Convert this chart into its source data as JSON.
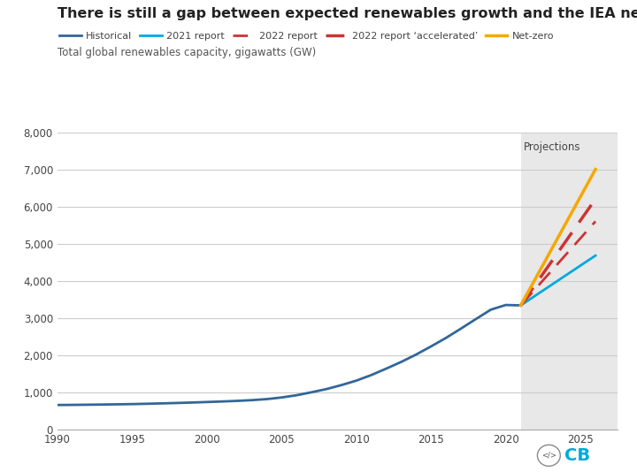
{
  "title": "There is still a gap between expected renewables growth and the IEA net-zero trajectory",
  "subtitle": "Total global renewables capacity, gigawatts (GW)",
  "title_fontsize": 11.5,
  "subtitle_fontsize": 8.5,
  "background_color": "#ffffff",
  "projection_bg": "#e8e8e8",
  "projection_start": 2021,
  "xlim": [
    1990,
    2027.5
  ],
  "ylim": [
    0,
    8000
  ],
  "yticks": [
    0,
    1000,
    2000,
    3000,
    4000,
    5000,
    6000,
    7000,
    8000
  ],
  "xticks": [
    1990,
    1995,
    2000,
    2005,
    2010,
    2015,
    2020,
    2025
  ],
  "historical": {
    "years": [
      1990,
      1991,
      1992,
      1993,
      1994,
      1995,
      1996,
      1997,
      1998,
      1999,
      2000,
      2001,
      2002,
      2003,
      2004,
      2005,
      2006,
      2007,
      2008,
      2009,
      2010,
      2011,
      2012,
      2013,
      2014,
      2015,
      2016,
      2017,
      2018,
      2019,
      2020,
      2021
    ],
    "values": [
      660,
      663,
      667,
      672,
      678,
      684,
      693,
      703,
      714,
      726,
      740,
      754,
      770,
      790,
      818,
      862,
      922,
      1002,
      1088,
      1195,
      1315,
      1465,
      1638,
      1818,
      2017,
      2236,
      2465,
      2715,
      2972,
      3225,
      3350,
      3340
    ],
    "color": "#336699",
    "linewidth": 2.0,
    "label": "Historical"
  },
  "report_2021": {
    "years": [
      2021,
      2026
    ],
    "values": [
      3340,
      4680
    ],
    "color": "#00aadd",
    "linewidth": 2.0,
    "label": "2021 report"
  },
  "report_2022": {
    "years": [
      2021,
      2026
    ],
    "values": [
      3340,
      5600
    ],
    "color": "#cc3333",
    "linewidth": 2.0,
    "linestyle": "--",
    "label": "2022 report"
  },
  "report_2022_accel": {
    "years": [
      2021,
      2026
    ],
    "values": [
      3340,
      6200
    ],
    "color": "#cc3333",
    "linewidth": 2.5,
    "linestyle": "--",
    "label": "2022 report 'accelerated'"
  },
  "net_zero": {
    "years": [
      2021,
      2026
    ],
    "values": [
      3340,
      7000
    ],
    "color": "#f5a800",
    "linewidth": 2.5,
    "label": "Net-zero"
  },
  "legend_colors": {
    "Historical": "#336699",
    "2021 report": "#00aadd",
    "2022 report": "#cc3333",
    "2022 report 'accelerated'": "#cc3333",
    "Net-zero": "#f5a800"
  },
  "projections_label": "Projections"
}
